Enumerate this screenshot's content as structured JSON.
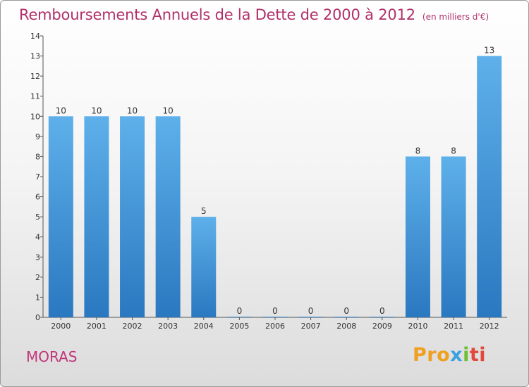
{
  "chart_data": {
    "type": "bar",
    "title": "Remboursements Annuels de la Dette de 2000 à 2012",
    "subtitle": "(en milliers d'€)",
    "categories": [
      "2000",
      "2001",
      "2002",
      "2003",
      "2004",
      "2005",
      "2006",
      "2007",
      "2008",
      "2009",
      "2010",
      "2011",
      "2012"
    ],
    "values": [
      10,
      10,
      10,
      10,
      5,
      0,
      0,
      0,
      0,
      0,
      8,
      8,
      13
    ],
    "ylim": [
      0,
      14
    ],
    "yticks": [
      "0",
      "1",
      "2",
      "3",
      "4",
      "5",
      "6",
      "7",
      "8",
      "9",
      "10",
      "11",
      "12",
      "13",
      "14"
    ],
    "xlabel": "",
    "ylabel": "",
    "grid": false,
    "bar_color": "#4a9ee0"
  },
  "footer": {
    "commune": "MORAS",
    "logo_parts": [
      "Pro",
      "x",
      "i",
      "ti"
    ],
    "logo_alt": "Proxiti"
  }
}
